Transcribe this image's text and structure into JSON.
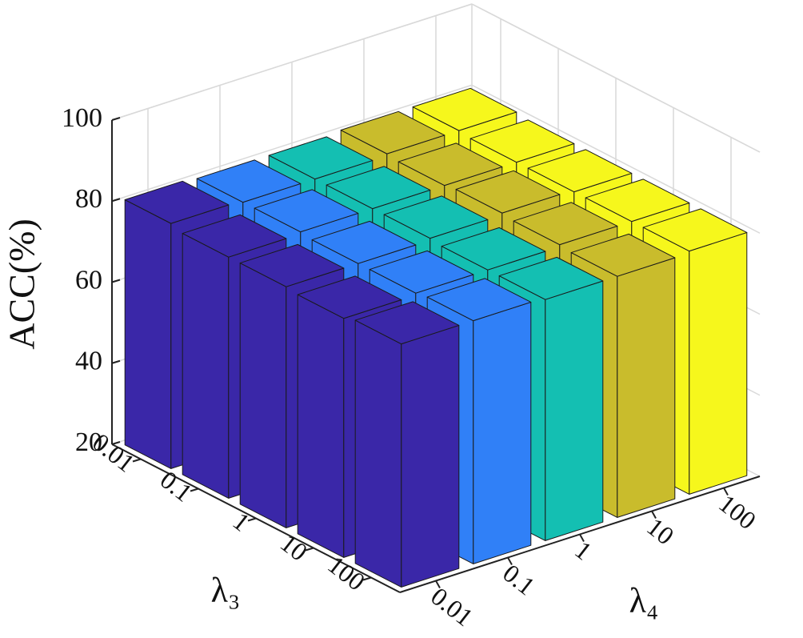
{
  "chart_data": {
    "type": "bar3d",
    "zlabel": "ACC(%)",
    "xlabel": "λ₃",
    "ylabel": "λ₄",
    "x_categories": [
      "0.01",
      "0.1",
      "1",
      "10",
      "100"
    ],
    "y_categories": [
      "0.01",
      "0.1",
      "1",
      "10",
      "100"
    ],
    "colors": [
      "#3a27a8",
      "#3080f7",
      "#14bfb2",
      "#c9bc2c",
      "#f6f71c"
    ],
    "values": [
      [
        80.5,
        80,
        80,
        80.5,
        80.5
      ],
      [
        79.5,
        80,
        80,
        80,
        80
      ],
      [
        79.5,
        79.5,
        80,
        80.5,
        80
      ],
      [
        79,
        79.5,
        79.5,
        80,
        80
      ],
      [
        80,
        80,
        79.5,
        79.5,
        80
      ]
    ],
    "zlim": [
      20,
      100
    ],
    "zticks": [
      20,
      40,
      60,
      80,
      100
    ],
    "grid": true
  }
}
